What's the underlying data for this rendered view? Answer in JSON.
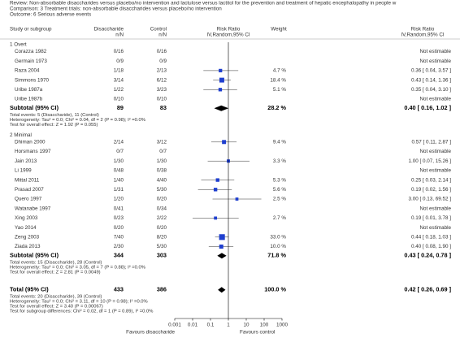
{
  "header": {
    "review": "Review:  Non-absorbable disaccharides versus placebo/no intervention and lactulose versus lactitol for the prevention and treatment of hepatic encephalopathy in people w",
    "comparison": "Comparison:  3 Treatment trials: non-absorbable disaccharides versus placebo/no intervention",
    "outcome": "Outcome:  6 Serious adverse events"
  },
  "columns": {
    "study": "Study or subgroup",
    "treat": "Disaccharide",
    "treat_unit": "n/N",
    "control": "Control",
    "control_unit": "n/N",
    "plot": "Risk Ratio",
    "plot_method": "IV,Random,95% CI",
    "weight": "Weight",
    "result": "Risk Ratio",
    "result_method": "IV,Random,95% CI"
  },
  "chart_data": {
    "type": "forest",
    "xscale": "log",
    "xlim": [
      0.001,
      1000
    ],
    "xticks": [
      0.001,
      0.01,
      0.1,
      1,
      10,
      100,
      1000
    ],
    "favours_left": "Favours disaccharide",
    "favours_right": "Favours control",
    "color": "#1f3fcf",
    "summary_color": "#000000",
    "groups": [
      {
        "name": "1 Overt",
        "studies": [
          {
            "name": "Corazza 1982",
            "treat": "0/16",
            "control": "0/16",
            "rr_label": "Not estimable"
          },
          {
            "name": "Germain 1973",
            "treat": "0/9",
            "control": "0/9",
            "rr_label": "Not estimable"
          },
          {
            "name": "Raza 2004",
            "treat": "1/18",
            "control": "2/13",
            "weight": 4.7,
            "weight_label": "4.7 %",
            "rr": 0.36,
            "ci": [
              0.04,
              3.57
            ],
            "rr_label": "0.36 [ 0.04, 3.57 ]"
          },
          {
            "name": "Simmons 1970",
            "treat": "3/14",
            "control": "6/12",
            "weight": 18.4,
            "weight_label": "18.4 %",
            "rr": 0.43,
            "ci": [
              0.14,
              1.36
            ],
            "rr_label": "0.43 [ 0.14, 1.36 ]"
          },
          {
            "name": "Uribe 1987a",
            "treat": "1/22",
            "control": "3/23",
            "weight": 5.1,
            "weight_label": "5.1 %",
            "rr": 0.35,
            "ci": [
              0.04,
              3.1
            ],
            "rr_label": "0.35 [ 0.04, 3.10 ]"
          },
          {
            "name": "Uribe 1987b",
            "treat": "0/10",
            "control": "0/10",
            "rr_label": "Not estimable"
          }
        ],
        "subtotal": {
          "label": "Subtotal (95% CI)",
          "treat": 89,
          "control": 83,
          "weight": 28.2,
          "weight_label": "28.2 %",
          "rr": 0.4,
          "ci": [
            0.16,
            1.02
          ],
          "rr_label": "0.40 [ 0.16, 1.02 ]"
        },
        "notes": [
          "Total events: 5 (Disaccharide), 11 (Control)",
          "Heterogeneity: Tau² = 0.0; Chi² = 0.04, df = 2 (P = 0.98); I² =0.0%",
          "Test for overall effect: Z = 1.92 (P = 0.055)"
        ]
      },
      {
        "name": "2 Minimal",
        "studies": [
          {
            "name": "Dhiman 2000",
            "treat": "2/14",
            "control": "3/12",
            "weight": 9.4,
            "weight_label": "9.4 %",
            "rr": 0.57,
            "ci": [
              0.11,
              2.87
            ],
            "rr_label": "0.57 [ 0.11, 2.87 ]"
          },
          {
            "name": "Horsmans 1997",
            "treat": "0/7",
            "control": "0/7",
            "rr_label": "Not estimable"
          },
          {
            "name": "Jain 2013",
            "treat": "1/30",
            "control": "1/30",
            "weight": 3.3,
            "weight_label": "3.3 %",
            "rr": 1.0,
            "ci": [
              0.07,
              15.26
            ],
            "rr_label": "1.00 [ 0.07, 15.26 ]"
          },
          {
            "name": "Li 1999",
            "treat": "0/48",
            "control": "0/38",
            "rr_label": "Not estimable"
          },
          {
            "name": "Mittal 2011",
            "treat": "1/40",
            "control": "4/40",
            "weight": 5.3,
            "weight_label": "5.3 %",
            "rr": 0.25,
            "ci": [
              0.03,
              2.14
            ],
            "rr_label": "0.25 [ 0.03, 2.14 ]"
          },
          {
            "name": "Prasad 2007",
            "treat": "1/31",
            "control": "5/30",
            "weight": 5.6,
            "weight_label": "5.6 %",
            "rr": 0.19,
            "ci": [
              0.02,
              1.56
            ],
            "rr_label": "0.19 [ 0.02, 1.56 ]"
          },
          {
            "name": "Quero 1997",
            "treat": "1/20",
            "control": "0/20",
            "weight": 2.5,
            "weight_label": "2.5 %",
            "rr": 3.0,
            "ci": [
              0.13,
              69.52
            ],
            "rr_label": "3.00 [ 0.13, 69.52 ]"
          },
          {
            "name": "Watanabe 1997",
            "treat": "0/41",
            "control": "0/34",
            "rr_label": "Not estimable"
          },
          {
            "name": "Xing 2003",
            "treat": "0/23",
            "control": "2/22",
            "weight": 2.7,
            "weight_label": "2.7 %",
            "rr": 0.19,
            "ci": [
              0.01,
              3.78
            ],
            "rr_label": "0.19 [ 0.01, 3.78 ]"
          },
          {
            "name": "Yao 2014",
            "treat": "0/20",
            "control": "0/20",
            "rr_label": "Not estimable"
          },
          {
            "name": "Zeng 2003",
            "treat": "7/40",
            "control": "8/20",
            "weight": 33.0,
            "weight_label": "33.0 %",
            "rr": 0.44,
            "ci": [
              0.18,
              1.03
            ],
            "rr_label": "0.44 [ 0.18, 1.03 ]"
          },
          {
            "name": "Ziada 2013",
            "treat": "2/30",
            "control": "5/30",
            "weight": 10.0,
            "weight_label": "10.0 %",
            "rr": 0.4,
            "ci": [
              0.08,
              1.9
            ],
            "rr_label": "0.40 [ 0.08, 1.90 ]"
          }
        ],
        "subtotal": {
          "label": "Subtotal (95% CI)",
          "treat": 344,
          "control": 303,
          "weight": 71.8,
          "weight_label": "71.8 %",
          "rr": 0.43,
          "ci": [
            0.24,
            0.78
          ],
          "rr_label": "0.43 [ 0.24, 0.78 ]"
        },
        "notes": [
          "Total events: 15 (Disaccharide), 28 (Control)",
          "Heterogeneity: Tau² = 0.0; Chi² = 3.05, df = 7 (P = 0.88); I² =0.0%",
          "Test for overall effect: Z = 2.81 (P = 0.0049)"
        ]
      }
    ],
    "total": {
      "label": "Total (95% CI)",
      "treat": 433,
      "control": 386,
      "weight": 100.0,
      "weight_label": "100.0 %",
      "rr": 0.42,
      "ci": [
        0.26,
        0.69
      ],
      "rr_label": "0.42 [ 0.26, 0.69 ]",
      "notes": [
        "Total events: 20 (Disaccharide), 39 (Control)",
        "Heterogeneity: Tau² = 0.0; Chi² = 3.11, df = 10 (P = 0.98); I² =0.0%",
        "Test for overall effect: Z = 3.40 (P = 0.00067)",
        "Test for subgroup differences: Chi² = 0.02, df = 1 (P = 0.89), I² =0.0%"
      ]
    }
  }
}
